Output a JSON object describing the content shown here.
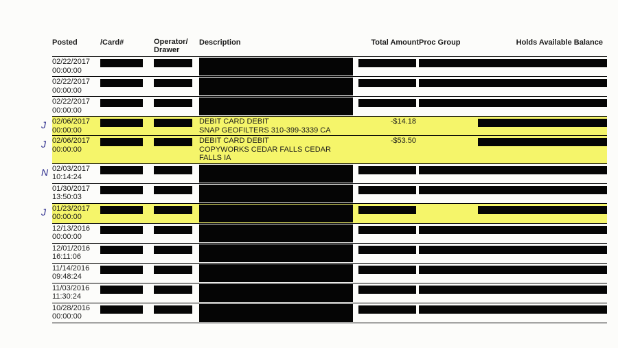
{
  "headers": {
    "posted": "Posted",
    "card": "/Card#",
    "operator": "Operator/ Drawer",
    "desc": "Description",
    "amount": "Total Amount",
    "proc": "Proc Group",
    "holds": "Holds Available Balance"
  },
  "highlight_color": "#f5f56a",
  "redact_color": "#050505",
  "handwritten_color": "#2a2a8c",
  "rows": [
    {
      "date": "02/22/2017",
      "time": "00:00:00",
      "highlighted": false,
      "mark": "",
      "desc": "",
      "amount": ""
    },
    {
      "date": "02/22/2017",
      "time": "00:00:00",
      "highlighted": false,
      "mark": "",
      "desc": "",
      "amount": ""
    },
    {
      "date": "02/22/2017",
      "time": "00:00:00",
      "highlighted": false,
      "mark": "",
      "desc": "",
      "amount": ""
    },
    {
      "date": "02/06/2017",
      "time": "00:00:00",
      "highlighted": true,
      "mark": "J",
      "desc": "DEBIT CARD DEBIT\nSNAP GEOFILTERS 310-399-3339 CA",
      "amount": "-$14.18"
    },
    {
      "date": "02/06/2017",
      "time": "00:00:00",
      "highlighted": true,
      "mark": "J",
      "desc": "DEBIT CARD DEBIT\nCOPYWORKS CEDAR FALLS CEDAR\nFALLS IA",
      "amount": "-$53.50"
    },
    {
      "date": "02/03/2017",
      "time": "10:14:24",
      "highlighted": false,
      "mark": "N",
      "desc": "",
      "amount": ""
    },
    {
      "date": "01/30/2017",
      "time": "13:50:03",
      "highlighted": false,
      "mark": "",
      "desc": "",
      "amount": ""
    },
    {
      "date": "01/23/2017",
      "time": "00:00:00",
      "highlighted": true,
      "mark": "J",
      "desc": "",
      "amount": ""
    },
    {
      "date": "12/13/2016",
      "time": "00:00:00",
      "highlighted": false,
      "mark": "",
      "desc": "",
      "amount": ""
    },
    {
      "date": "12/01/2016",
      "time": "16:11:06",
      "highlighted": false,
      "mark": "",
      "desc": "",
      "amount": ""
    },
    {
      "date": "11/14/2016",
      "time": "09:48:24",
      "highlighted": false,
      "mark": "",
      "desc": "",
      "amount": ""
    },
    {
      "date": "11/03/2016",
      "time": "11:30:24",
      "highlighted": false,
      "mark": "",
      "desc": "",
      "amount": ""
    },
    {
      "date": "10/28/2016",
      "time": "00:00:00",
      "highlighted": false,
      "mark": "",
      "desc": "",
      "amount": ""
    }
  ]
}
